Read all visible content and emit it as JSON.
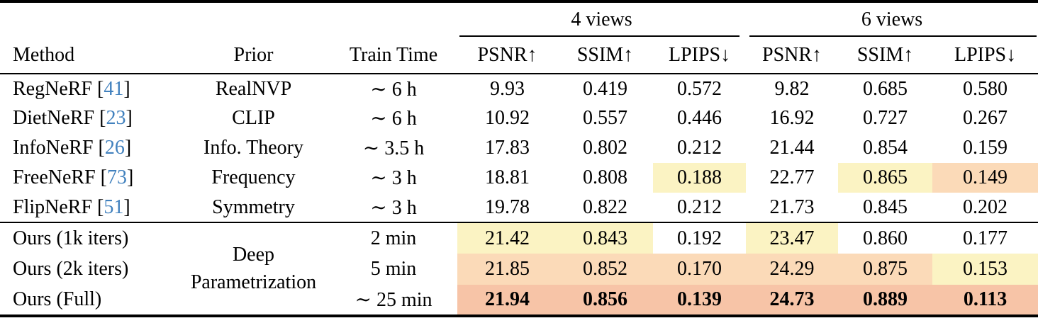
{
  "colors": {
    "citation": "#4181be",
    "best": "#f7c4a7",
    "second": "#fbdab8",
    "third": "#fbf3c3",
    "rule": "#000000"
  },
  "citation_brackets": {
    "open": "[",
    "close": "]"
  },
  "header": {
    "method": "Method",
    "prior": "Prior",
    "train_time": "Train Time",
    "group_4views": "4 views",
    "group_6views": "6 views",
    "psnr": "PSNR↑",
    "ssim": "SSIM↑",
    "lpips": "LPIPS↓"
  },
  "baseline_rows": [
    {
      "method": "RegNeRF",
      "cite": "41",
      "prior": "RealNVP",
      "train_time": "∼ 6 h",
      "psnr4": "9.93",
      "ssim4": "0.419",
      "lpips4": "0.572",
      "psnr6": "9.82",
      "ssim6": "0.685",
      "lpips6": "0.580",
      "hl": {}
    },
    {
      "method": "DietNeRF",
      "cite": "23",
      "prior": "CLIP",
      "train_time": "∼ 6 h",
      "psnr4": "10.92",
      "ssim4": "0.557",
      "lpips4": "0.446",
      "psnr6": "16.92",
      "ssim6": "0.727",
      "lpips6": "0.267",
      "hl": {}
    },
    {
      "method": "InfoNeRF",
      "cite": "26",
      "prior": "Info. Theory",
      "train_time": "∼ 3.5 h",
      "psnr4": "17.83",
      "ssim4": "0.802",
      "lpips4": "0.212",
      "psnr6": "21.44",
      "ssim6": "0.854",
      "lpips6": "0.159",
      "hl": {}
    },
    {
      "method": "FreeNeRF",
      "cite": "73",
      "prior": "Frequency",
      "train_time": "∼ 3 h",
      "psnr4": "18.81",
      "ssim4": "0.808",
      "lpips4": "0.188",
      "psnr6": "22.77",
      "ssim6": "0.865",
      "lpips6": "0.149",
      "hl": {
        "lpips4": "third",
        "ssim6": "third",
        "lpips6": "second"
      }
    },
    {
      "method": "FlipNeRF",
      "cite": "51",
      "prior": "Symmetry",
      "train_time": "∼ 3 h",
      "psnr4": "19.78",
      "ssim4": "0.822",
      "lpips4": "0.212",
      "psnr6": "21.73",
      "ssim6": "0.845",
      "lpips6": "0.202",
      "hl": {}
    }
  ],
  "ours": {
    "prior_line1": "Deep",
    "prior_line2": "Parametrization",
    "rows": [
      {
        "method": "Ours (1k iters)",
        "train_time": "2 min",
        "psnr4": "21.42",
        "ssim4": "0.843",
        "lpips4": "0.192",
        "psnr6": "23.47",
        "ssim6": "0.860",
        "lpips6": "0.177",
        "hl": {
          "psnr4": "third",
          "ssim4": "third",
          "psnr6": "third"
        }
      },
      {
        "method": "Ours (2k iters)",
        "train_time": "5 min",
        "psnr4": "21.85",
        "ssim4": "0.852",
        "lpips4": "0.170",
        "psnr6": "24.29",
        "ssim6": "0.875",
        "lpips6": "0.153",
        "hl": {
          "psnr4": "second",
          "ssim4": "second",
          "lpips4": "second",
          "psnr6": "second",
          "ssim6": "second",
          "lpips6": "third"
        }
      },
      {
        "method": "Ours (Full)",
        "train_time": "∼ 25 min",
        "psnr4": "21.94",
        "ssim4": "0.856",
        "lpips4": "0.139",
        "psnr6": "24.73",
        "ssim6": "0.889",
        "lpips6": "0.113",
        "hl": {
          "psnr4": "best",
          "ssim4": "best",
          "lpips4": "best",
          "psnr6": "best",
          "ssim6": "best",
          "lpips6": "best"
        }
      }
    ]
  }
}
